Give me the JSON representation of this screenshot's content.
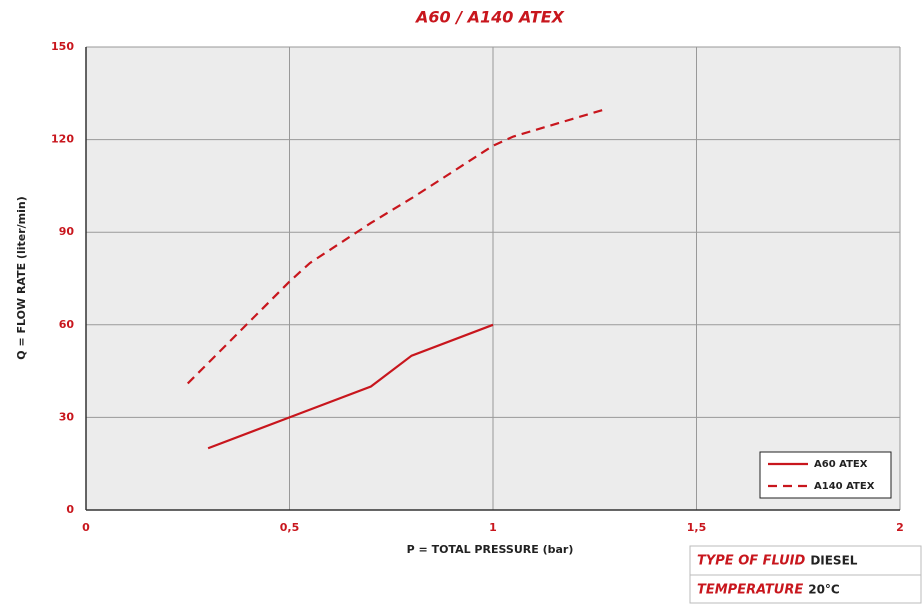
{
  "chart_data": {
    "type": "line",
    "title": "A60 / A140 ATEX",
    "x_label": "P = TOTAL PRESSURE (bar)",
    "y_label": "Q = FLOW RATE (liter/min)",
    "xlim": [
      0,
      2
    ],
    "xticks": [
      0,
      {
        "value": 0.5,
        "label": "0,5"
      },
      1,
      {
        "value": 1.5,
        "label": "1,5"
      },
      2
    ],
    "ylim": [
      0,
      150
    ],
    "yticks": [
      0,
      30,
      60,
      90,
      120,
      150
    ],
    "grid": true,
    "legend": "lower right",
    "series": [
      {
        "name": "A60 ATEX",
        "color": "#c8161d",
        "dash": "solid",
        "x": [
          0.3,
          0.5,
          0.7,
          0.8,
          1
        ],
        "values": [
          20,
          30,
          40,
          50,
          60
        ]
      },
      {
        "name": "A140 ATEX",
        "color": "#c8161d",
        "dash": "dashed",
        "x": [
          0.25,
          0.5,
          0.55,
          0.7,
          0.8,
          1,
          1.05,
          1.28
        ],
        "values": [
          41,
          74,
          80,
          93,
          101,
          118,
          121,
          130
        ]
      }
    ],
    "info_table": [
      {
        "label": "TYPE OF FLUID",
        "value": "DIESEL"
      },
      {
        "label": "TEMPERATURE",
        "value": "20°C"
      }
    ]
  }
}
